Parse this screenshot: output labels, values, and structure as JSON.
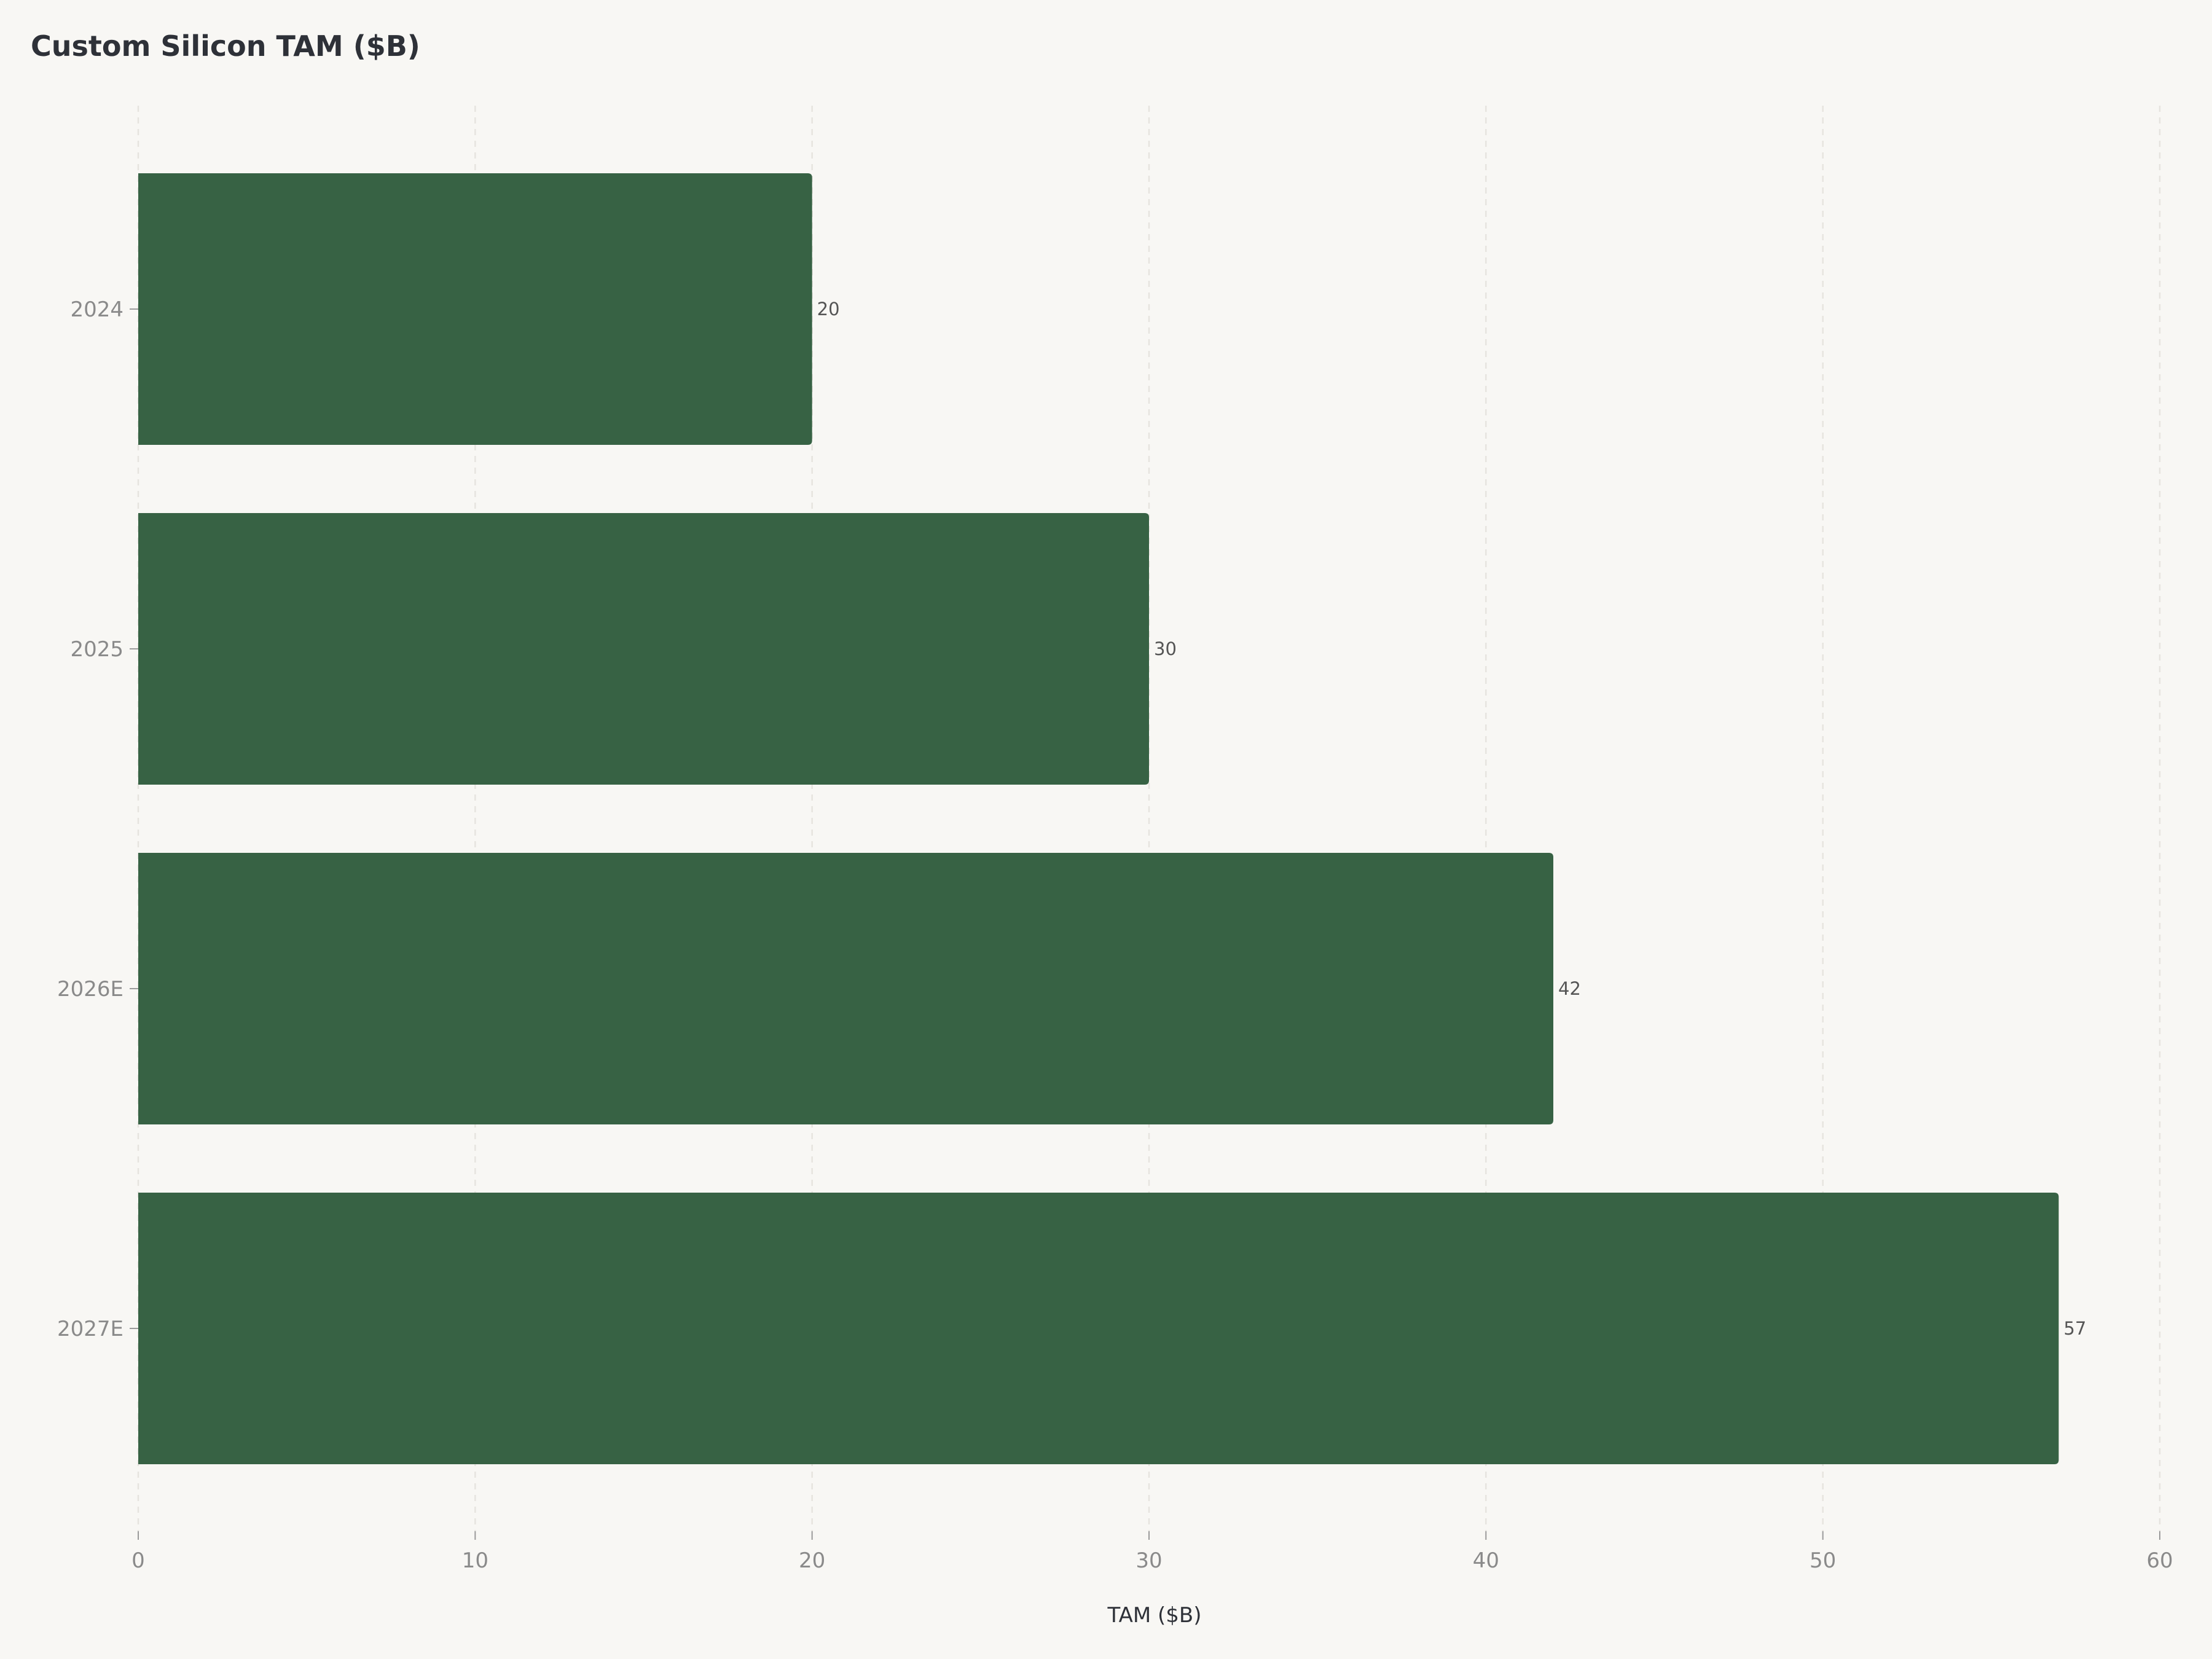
{
  "chart_data": {
    "type": "bar",
    "orientation": "horizontal",
    "title": "Custom Silicon TAM ($B)",
    "xlabel": "TAM ($B)",
    "ylabel": "",
    "categories": [
      "2024",
      "2025",
      "2026E",
      "2027E"
    ],
    "values": [
      20,
      30,
      42,
      57
    ],
    "value_labels": [
      "20",
      "30",
      "42",
      "57"
    ],
    "xlim": [
      0,
      60
    ],
    "xticks": [
      0,
      10,
      20,
      30,
      40,
      50,
      60
    ],
    "xtick_labels": [
      "0",
      "10",
      "20",
      "30",
      "40",
      "50",
      "60"
    ],
    "grid": "vertical dashed",
    "legend": "none",
    "colors": {
      "bar": "#376244",
      "background": "#f8f7f4",
      "grid": "#e6e4df",
      "title": "#2e3138",
      "tick_text": "#8a8a8a",
      "value_text": "#555555"
    }
  }
}
